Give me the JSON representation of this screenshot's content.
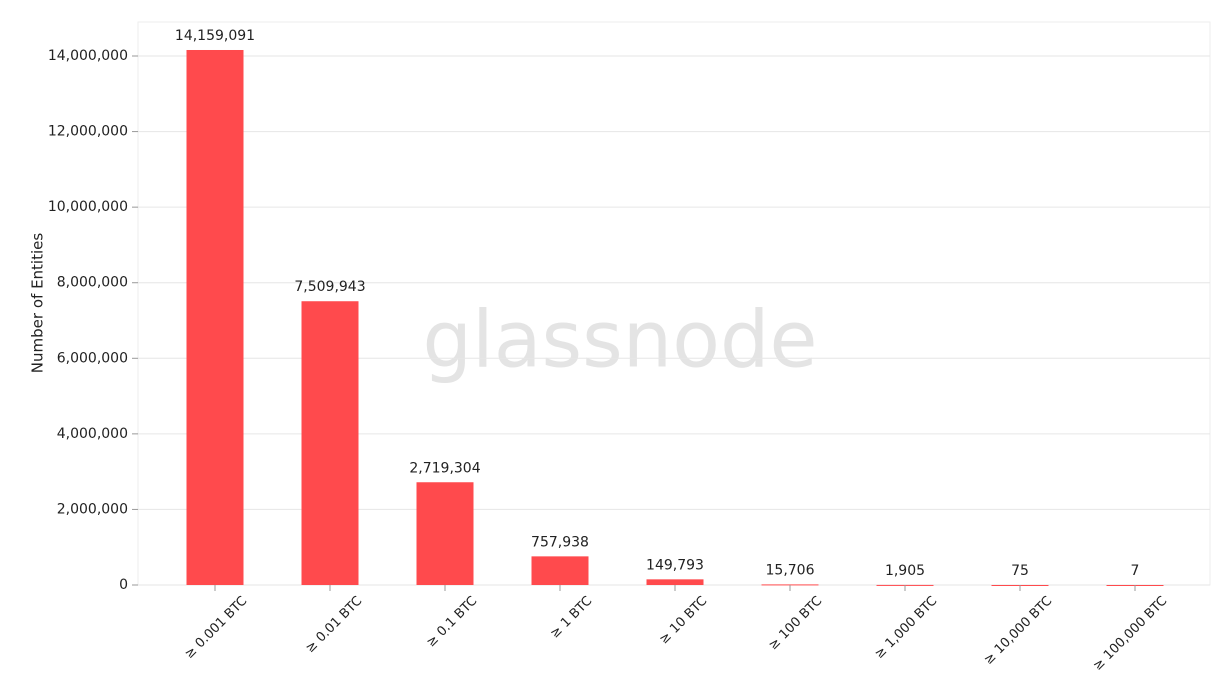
{
  "chart_data": {
    "type": "bar",
    "y_label": "Number of Entities",
    "watermark": "glassnode",
    "categories": [
      "≥ 0.001 BTC",
      "≥ 0.01 BTC",
      "≥ 0.1 BTC",
      "≥ 1 BTC",
      "≥ 10 BTC",
      "≥ 100 BTC",
      "≥ 1,000 BTC",
      "≥ 10,000 BTC",
      "≥ 100,000 BTC"
    ],
    "values": [
      14159091,
      7509943,
      2719304,
      757938,
      149793,
      15706,
      1905,
      75,
      7
    ],
    "value_labels": [
      "14,159,091",
      "7,509,943",
      "2,719,304",
      "757,938",
      "149,793",
      "15,706",
      "1,905",
      "75",
      "7"
    ],
    "color": "#ff4a4d",
    "ylim": [
      0,
      14900000
    ],
    "yticks": [
      0,
      {
        "value": 2000000,
        "label": "2,000,000"
      },
      {
        "value": 4000000,
        "label": "4,000,000"
      },
      {
        "value": 6000000,
        "label": "6,000,000"
      },
      {
        "value": 8000000,
        "label": "8,000,000"
      },
      {
        "value": 10000000,
        "label": "10,000,000"
      },
      {
        "value": 12000000,
        "label": "12,000,000"
      },
      {
        "value": 14000000,
        "label": "14,000,000"
      }
    ],
    "grid": true
  }
}
